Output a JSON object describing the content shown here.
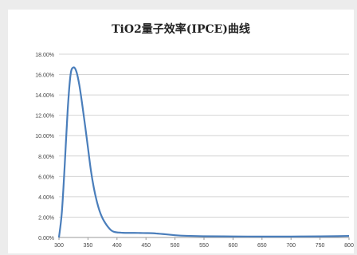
{
  "chart_data": {
    "type": "line",
    "title": "TiO2量子效率(IPCE)曲线",
    "xlabel": "",
    "ylabel": "",
    "xlim": [
      300,
      800
    ],
    "ylim": [
      0,
      0.18
    ],
    "x_ticks": [
      300,
      350,
      400,
      450,
      500,
      550,
      600,
      650,
      700,
      750,
      800
    ],
    "x_tick_labels": [
      "300",
      "350",
      "400",
      "450",
      "500",
      "550",
      "600",
      "650",
      "700",
      "750",
      "800"
    ],
    "y_ticks": [
      0,
      0.02,
      0.04,
      0.06,
      0.08,
      0.1,
      0.12,
      0.14,
      0.16,
      0.18
    ],
    "y_tick_labels": [
      "0.00%",
      "2.00%",
      "4.00%",
      "6.00%",
      "8.00%",
      "10.00%",
      "12.00%",
      "14.00%",
      "16.00%",
      "18.00%"
    ],
    "grid": true,
    "series": [
      {
        "color": "#4a7ebb",
        "x": [
          300,
          305,
          310,
          315,
          320,
          325,
          330,
          335,
          340,
          345,
          350,
          355,
          360,
          365,
          370,
          375,
          380,
          385,
          390,
          395,
          400,
          405,
          410,
          420,
          430,
          440,
          450,
          460,
          470,
          480,
          490,
          500,
          520,
          550,
          600,
          650,
          700,
          750,
          780,
          800
        ],
        "values": [
          0.0,
          0.025,
          0.072,
          0.125,
          0.16,
          0.167,
          0.163,
          0.15,
          0.131,
          0.11,
          0.088,
          0.066,
          0.049,
          0.036,
          0.026,
          0.019,
          0.014,
          0.01,
          0.007,
          0.0055,
          0.005,
          0.0048,
          0.0046,
          0.0045,
          0.0045,
          0.0044,
          0.0043,
          0.0042,
          0.0038,
          0.0033,
          0.0028,
          0.0022,
          0.0016,
          0.0012,
          0.001,
          0.0009,
          0.0009,
          0.0011,
          0.0013,
          0.0015
        ]
      }
    ]
  }
}
